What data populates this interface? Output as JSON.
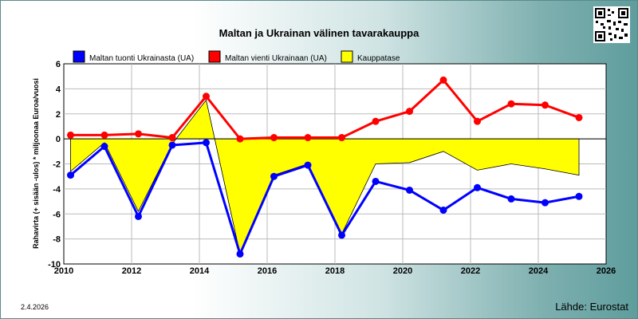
{
  "chart_data": {
    "type": "line",
    "title": "Maltan ja Ukrainan välinen tavarakauppa",
    "ylabel": "Rahavirta (+ sisään -ulos)  * miljoonaa Euroa/vuosi",
    "xlabel": "",
    "xlim": [
      2010,
      2026
    ],
    "ylim": [
      -10,
      6
    ],
    "x_ticks": [
      2010,
      2012,
      2014,
      2016,
      2018,
      2020,
      2022,
      2024,
      2026
    ],
    "y_ticks": [
      -10,
      -8,
      -6,
      -4,
      -2,
      0,
      2,
      4,
      6
    ],
    "grid": true,
    "legend": "top",
    "x": [
      2010.2,
      2011.2,
      2012.2,
      2013.2,
      2014.2,
      2015.2,
      2016.2,
      2017.2,
      2018.2,
      2019.2,
      2020.2,
      2021.2,
      2022.2,
      2023.2,
      2024.2,
      2025.2
    ],
    "series": [
      {
        "name": "Maltan tuonti Ukrainasta (UA)",
        "kind": "line",
        "color": "#0000ff",
        "values": [
          -2.9,
          -0.6,
          -6.2,
          -0.5,
          -0.3,
          -9.2,
          -3.0,
          -2.1,
          -7.7,
          -3.4,
          -4.1,
          -5.7,
          -3.9,
          -4.8,
          -5.1,
          -4.6
        ]
      },
      {
        "name": "Maltan vienti Ukrainaan (UA)",
        "kind": "line",
        "color": "#ff0000",
        "values": [
          0.3,
          0.3,
          0.4,
          0.1,
          3.4,
          0.0,
          0.1,
          0.1,
          0.1,
          1.4,
          2.2,
          4.7,
          1.4,
          2.8,
          2.7,
          1.7
        ]
      },
      {
        "name": "Kauppatase",
        "kind": "area",
        "color": "#ffff00",
        "values": [
          -2.6,
          -0.3,
          -5.8,
          -0.4,
          3.1,
          -9.2,
          -2.9,
          -2.0,
          -7.6,
          -2.0,
          -1.9,
          -1.0,
          -2.5,
          -2.0,
          -2.4,
          -2.9
        ]
      }
    ]
  },
  "footer": {
    "source": "Lähde: Eurostat",
    "date": "2.4.2026"
  }
}
